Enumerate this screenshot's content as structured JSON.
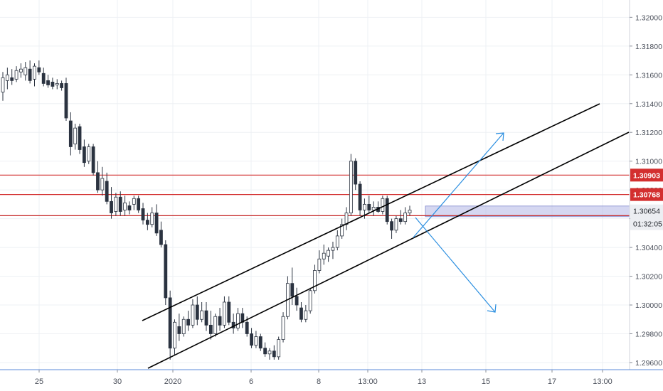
{
  "chart_data": {
    "type": "candlestick",
    "instrument_note": "",
    "x_ticks": [
      "25",
      "30",
      "2020",
      "6",
      "8",
      "13:00",
      "13",
      "15",
      "17",
      "13:00"
    ],
    "y_ticks": [
      "1.32000",
      "1.31800",
      "1.31600",
      "1.31400",
      "1.31200",
      "1.31000",
      "1.30800",
      "1.30600",
      "1.30400",
      "1.30200",
      "1.30000",
      "1.29800",
      "1.29600"
    ],
    "y_range": [
      1.2958,
      1.3215
    ],
    "grid": true,
    "horizontal_levels": [
      {
        "value": 1.30903,
        "label": "1.30903",
        "color": "#d32f2f"
      },
      {
        "value": 1.30768,
        "label": "1.30768",
        "color": "#d32f2f"
      },
      {
        "value": 1.30591,
        "label": "1.30591",
        "color": "#c62828"
      }
    ],
    "current_price": {
      "value": 1.30654,
      "label": "1.30654",
      "countdown": "01:32:05"
    },
    "zone": {
      "from": 1.30614,
      "to": 1.30688,
      "color": "#b3b7e6"
    },
    "candles": [
      [
        1.3148,
        1.3162,
        1.3142,
        1.3158
      ],
      [
        1.3156,
        1.3165,
        1.315,
        1.316
      ],
      [
        1.3158,
        1.3164,
        1.3153,
        1.3156
      ],
      [
        1.3157,
        1.3166,
        1.3155,
        1.3163
      ],
      [
        1.3162,
        1.3168,
        1.3158,
        1.3164
      ],
      [
        1.316,
        1.3169,
        1.3156,
        1.3165
      ],
      [
        1.3164,
        1.317,
        1.3154,
        1.3156
      ],
      [
        1.3157,
        1.3168,
        1.3152,
        1.3166
      ],
      [
        1.3165,
        1.317,
        1.316,
        1.3162
      ],
      [
        1.3161,
        1.3165,
        1.3152,
        1.3154
      ],
      [
        1.3156,
        1.316,
        1.3151,
        1.3153
      ],
      [
        1.3155,
        1.3158,
        1.315,
        1.3152
      ],
      [
        1.3153,
        1.3157,
        1.315,
        1.3154
      ],
      [
        1.3154,
        1.3156,
        1.3149,
        1.3151
      ],
      [
        1.3154,
        1.3158,
        1.3128,
        1.313
      ],
      [
        1.3128,
        1.3134,
        1.3104,
        1.311
      ],
      [
        1.3112,
        1.3126,
        1.3108,
        1.3123
      ],
      [
        1.3124,
        1.3126,
        1.3105,
        1.3108
      ],
      [
        1.311,
        1.3115,
        1.3096,
        1.3099
      ],
      [
        1.31,
        1.3112,
        1.3098,
        1.311
      ],
      [
        1.311,
        1.3112,
        1.309,
        1.3092
      ],
      [
        1.3092,
        1.31,
        1.3078,
        1.308
      ],
      [
        1.308,
        1.3096,
        1.3076,
        1.3088
      ],
      [
        1.3086,
        1.3092,
        1.307,
        1.3072
      ],
      [
        1.3072,
        1.3082,
        1.306,
        1.3064
      ],
      [
        1.3065,
        1.3078,
        1.3062,
        1.3075
      ],
      [
        1.3075,
        1.3079,
        1.3062,
        1.3065
      ],
      [
        1.3066,
        1.3076,
        1.3062,
        1.3071
      ],
      [
        1.3069,
        1.3072,
        1.3063,
        1.3066
      ],
      [
        1.307,
        1.3076,
        1.3066,
        1.3074
      ],
      [
        1.3074,
        1.3076,
        1.3064,
        1.3066
      ],
      [
        1.3067,
        1.3071,
        1.3056,
        1.3059
      ],
      [
        1.3059,
        1.3064,
        1.3052,
        1.3056
      ],
      [
        1.3056,
        1.3068,
        1.3054,
        1.3064
      ],
      [
        1.3064,
        1.307,
        1.3048,
        1.305
      ],
      [
        1.3052,
        1.3058,
        1.304,
        1.3042
      ],
      [
        1.3042,
        1.3045,
        1.3,
        1.3005
      ],
      [
        1.3005,
        1.301,
        1.2962,
        1.297
      ],
      [
        1.297,
        1.299,
        1.2965,
        1.2988
      ],
      [
        1.2985,
        1.2994,
        1.2975,
        1.298
      ],
      [
        1.298,
        1.2992,
        1.2978,
        1.299
      ],
      [
        1.299,
        1.2996,
        1.2982,
        1.2986
      ],
      [
        1.2986,
        1.3004,
        1.2984,
        1.3
      ],
      [
        1.3,
        1.3006,
        1.2986,
        1.299
      ],
      [
        1.299,
        1.3002,
        1.2988,
        1.2996
      ],
      [
        1.2996,
        1.3002,
        1.2982,
        1.2986
      ],
      [
        1.2986,
        1.2996,
        1.2976,
        1.298
      ],
      [
        1.298,
        1.2994,
        1.2978,
        1.2992
      ],
      [
        1.2992,
        1.2998,
        1.2982,
        1.2986
      ],
      [
        1.2986,
        1.3006,
        1.2984,
        1.3002
      ],
      [
        1.3002,
        1.3006,
        1.2986,
        1.2988
      ],
      [
        1.2988,
        1.2994,
        1.298,
        1.2984
      ],
      [
        1.2984,
        1.2998,
        1.2982,
        1.2994
      ],
      [
        1.2994,
        1.2998,
        1.2984,
        1.2988
      ],
      [
        1.2988,
        1.2992,
        1.2978,
        1.298
      ],
      [
        1.298,
        1.2984,
        1.297,
        1.2972
      ],
      [
        1.2972,
        1.2982,
        1.297,
        1.2978
      ],
      [
        1.2978,
        1.298,
        1.2968,
        1.297
      ],
      [
        1.297,
        1.2974,
        1.2964,
        1.2966
      ],
      [
        1.2966,
        1.297,
        1.2962,
        1.2968
      ],
      [
        1.2968,
        1.2972,
        1.2962,
        1.2964
      ],
      [
        1.2964,
        1.2978,
        1.2962,
        1.2976
      ],
      [
        1.2976,
        1.2995,
        1.2974,
        1.2992
      ],
      [
        1.2992,
        1.302,
        1.299,
        1.3015
      ],
      [
        1.3015,
        1.3026,
        1.3,
        1.3006
      ],
      [
        1.3006,
        1.3012,
        1.2996,
        1.3
      ],
      [
        1.2998,
        1.3002,
        1.2988,
        1.299
      ],
      [
        1.299,
        1.3,
        1.2988,
        1.2996
      ],
      [
        1.2996,
        1.3012,
        1.2994,
        1.301
      ],
      [
        1.301,
        1.3028,
        1.3008,
        1.3024
      ],
      [
        1.3024,
        1.3038,
        1.3022,
        1.3032
      ],
      [
        1.3032,
        1.3042,
        1.3028,
        1.3036
      ],
      [
        1.3034,
        1.304,
        1.303,
        1.3038
      ],
      [
        1.3038,
        1.3044,
        1.3032,
        1.304
      ],
      [
        1.304,
        1.3052,
        1.3038,
        1.3048
      ],
      [
        1.3048,
        1.306,
        1.3046,
        1.3056
      ],
      [
        1.3056,
        1.3068,
        1.3052,
        1.3064
      ],
      [
        1.3064,
        1.3105,
        1.3062,
        1.31
      ],
      [
        1.31,
        1.3102,
        1.308,
        1.3084
      ],
      [
        1.3084,
        1.3086,
        1.3062,
        1.3066
      ],
      [
        1.3066,
        1.3074,
        1.306,
        1.307
      ],
      [
        1.307,
        1.3076,
        1.3064,
        1.3066
      ],
      [
        1.3066,
        1.3072,
        1.3062,
        1.3068
      ],
      [
        1.3068,
        1.3072,
        1.3064,
        1.3065
      ],
      [
        1.3065,
        1.3076,
        1.3063,
        1.3074
      ],
      [
        1.3074,
        1.3076,
        1.3056,
        1.3058
      ],
      [
        1.3058,
        1.306,
        1.3046,
        1.3052
      ],
      [
        1.3052,
        1.3062,
        1.305,
        1.306
      ],
      [
        1.306,
        1.3066,
        1.3056,
        1.3058
      ],
      [
        1.3058,
        1.3068,
        1.3056,
        1.3064
      ],
      [
        1.3064,
        1.3069,
        1.3062,
        1.3066
      ]
    ]
  }
}
